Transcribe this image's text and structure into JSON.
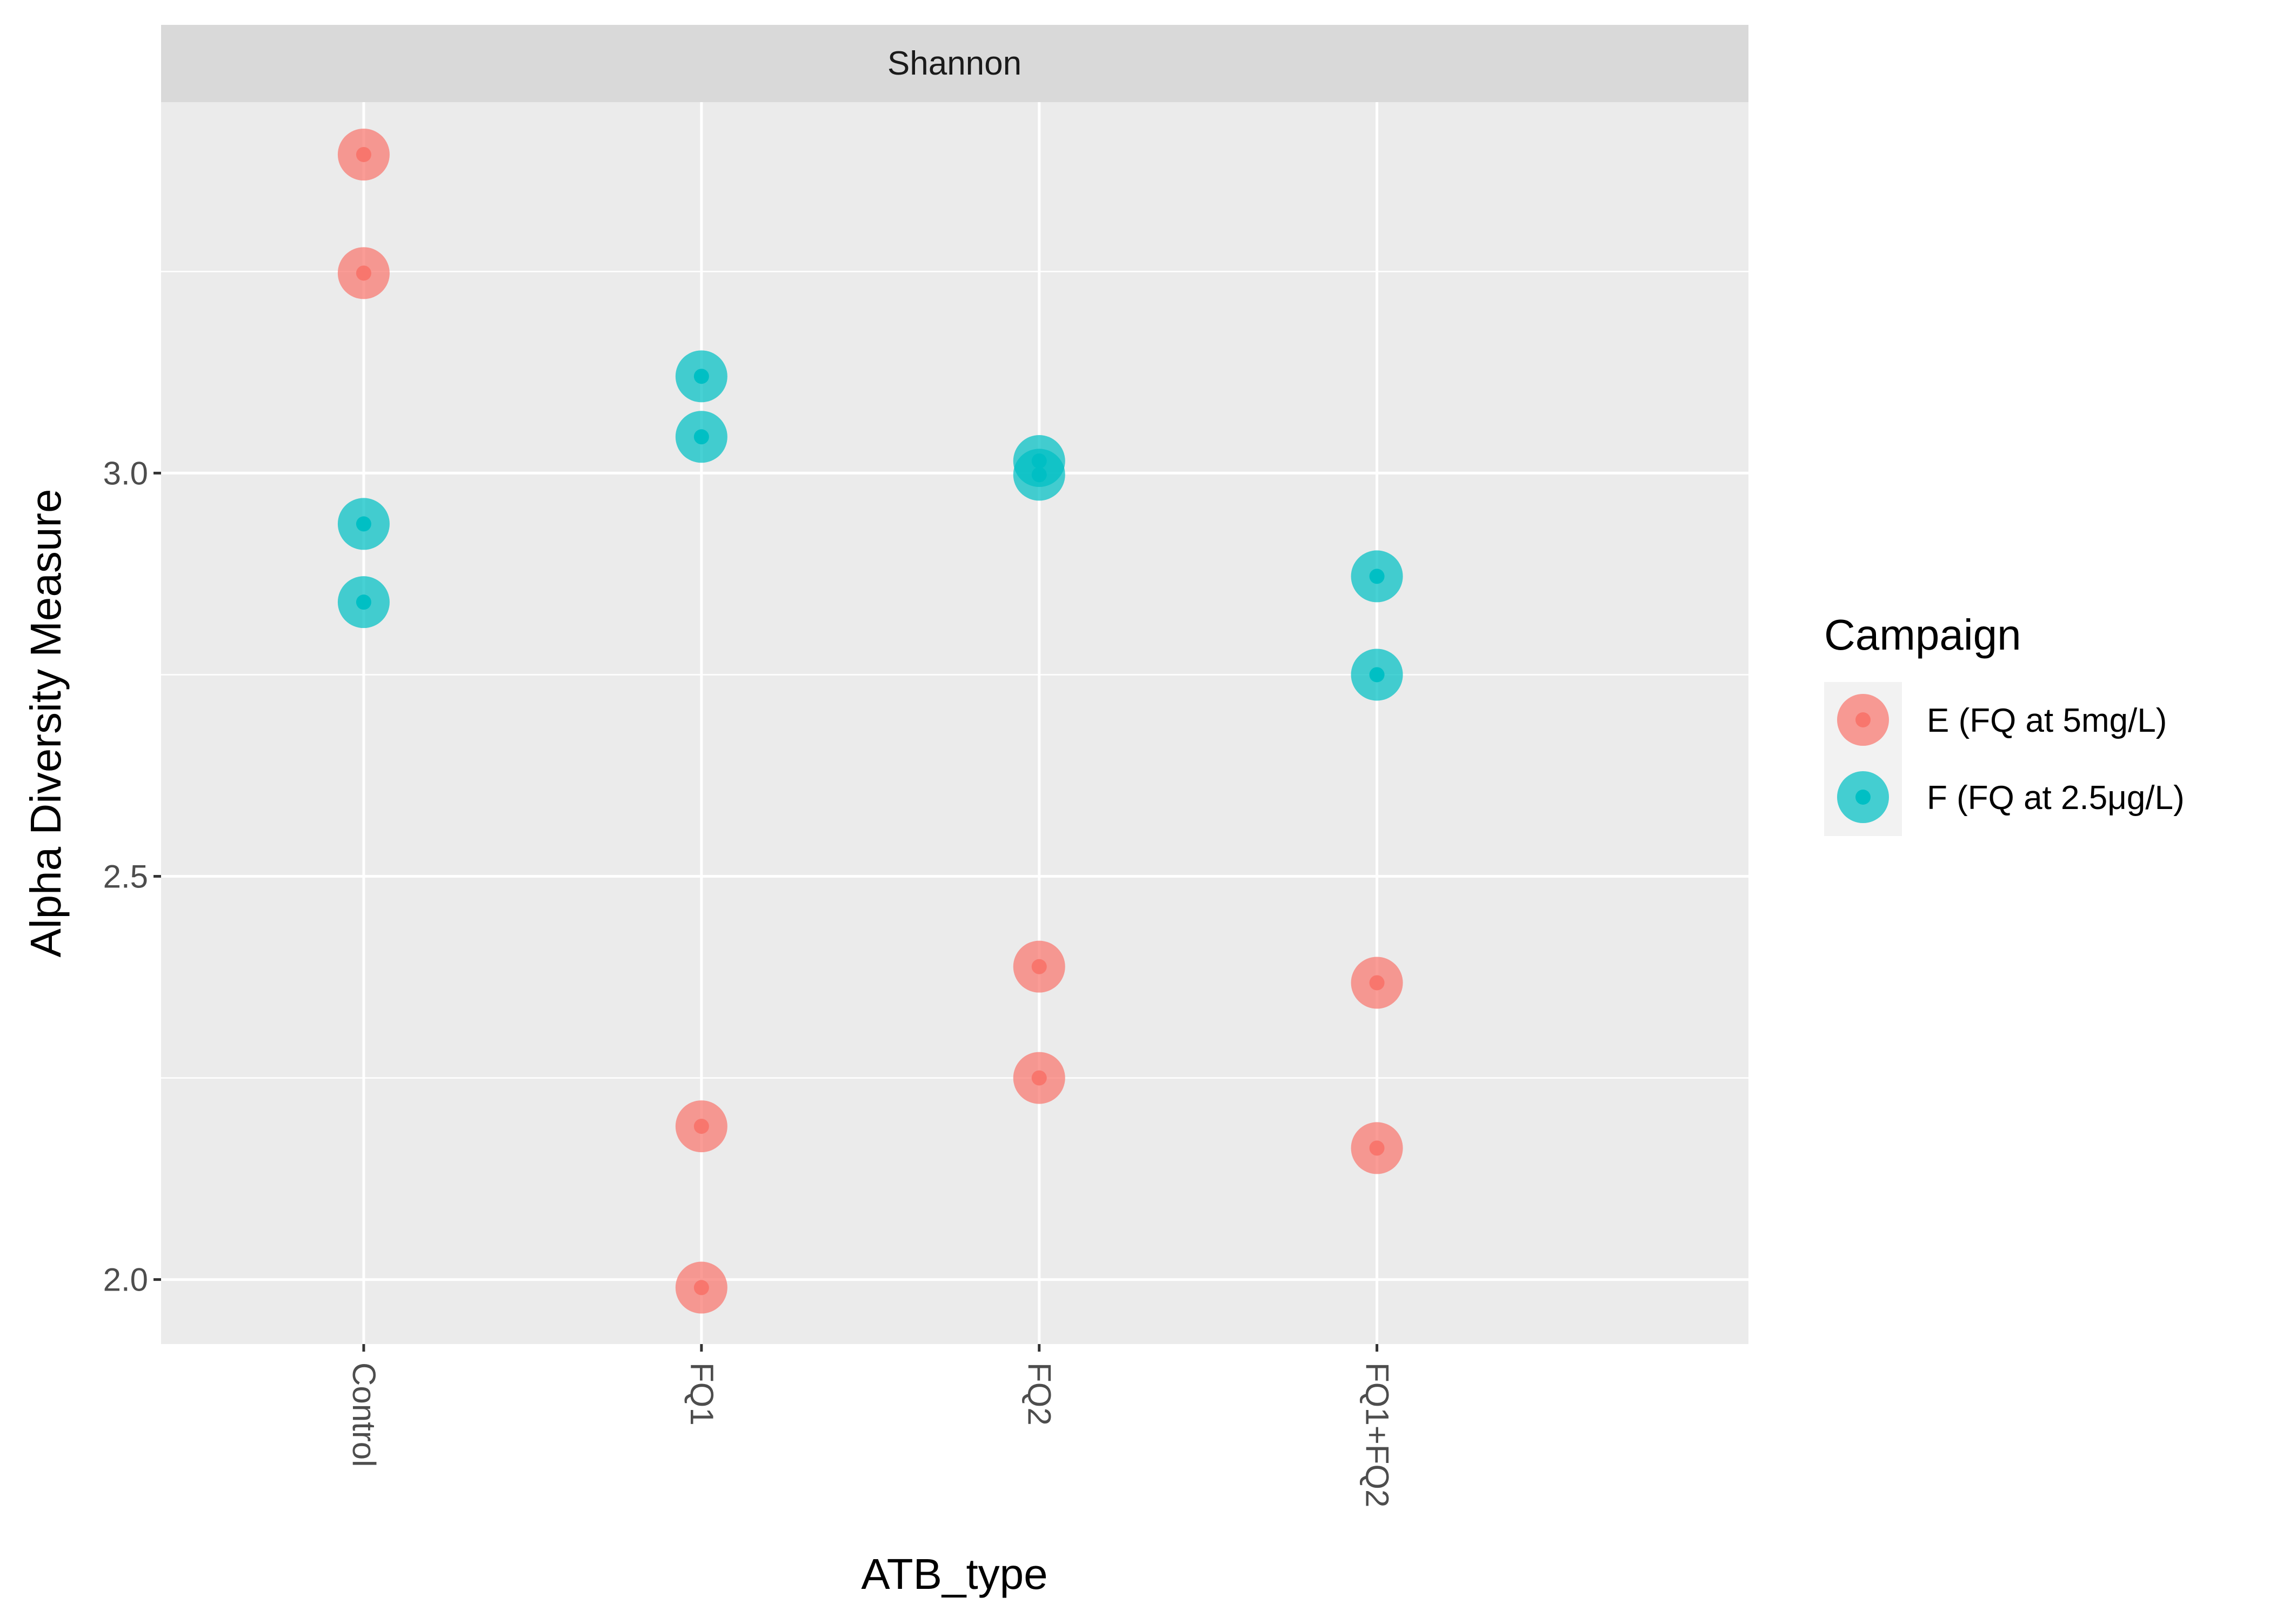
{
  "chart_data": {
    "type": "scatter",
    "facet_label": "Shannon",
    "xlabel": "ATB_type",
    "ylabel": "Alpha Diversity Measure",
    "categories": [
      "Control",
      "FQ1",
      "FQ2",
      "FQ1+FQ2"
    ],
    "ylim": [
      1.92,
      3.46
    ],
    "yticks": [
      2.0,
      2.5,
      3.0
    ],
    "ytick_labels": [
      "2.0",
      "2.5",
      "3.0"
    ],
    "grid": true,
    "legend": {
      "title": "Campaign",
      "placement": "right"
    },
    "series": [
      {
        "name": "E (FQ at 5mg/L)",
        "color": "#F8766D",
        "points": [
          {
            "x": "Control",
            "y": 3.395
          },
          {
            "x": "Control",
            "y": 3.248
          },
          {
            "x": "FQ1",
            "y": 2.19
          },
          {
            "x": "FQ1",
            "y": 1.99
          },
          {
            "x": "FQ2",
            "y": 2.388
          },
          {
            "x": "FQ2",
            "y": 2.25
          },
          {
            "x": "FQ1+FQ2",
            "y": 2.368
          },
          {
            "x": "FQ1+FQ2",
            "y": 2.163
          }
        ]
      },
      {
        "name": "F (FQ at 2.5μg/L)",
        "color": "#00BFC4",
        "points": [
          {
            "x": "Control",
            "y": 2.937
          },
          {
            "x": "Control",
            "y": 2.84
          },
          {
            "x": "FQ1",
            "y": 3.12
          },
          {
            "x": "FQ1",
            "y": 3.045
          },
          {
            "x": "FQ2",
            "y": 3.015
          },
          {
            "x": "FQ2",
            "y": 2.998
          },
          {
            "x": "FQ1+FQ2",
            "y": 2.872
          },
          {
            "x": "FQ1+FQ2",
            "y": 2.75
          }
        ]
      }
    ]
  }
}
